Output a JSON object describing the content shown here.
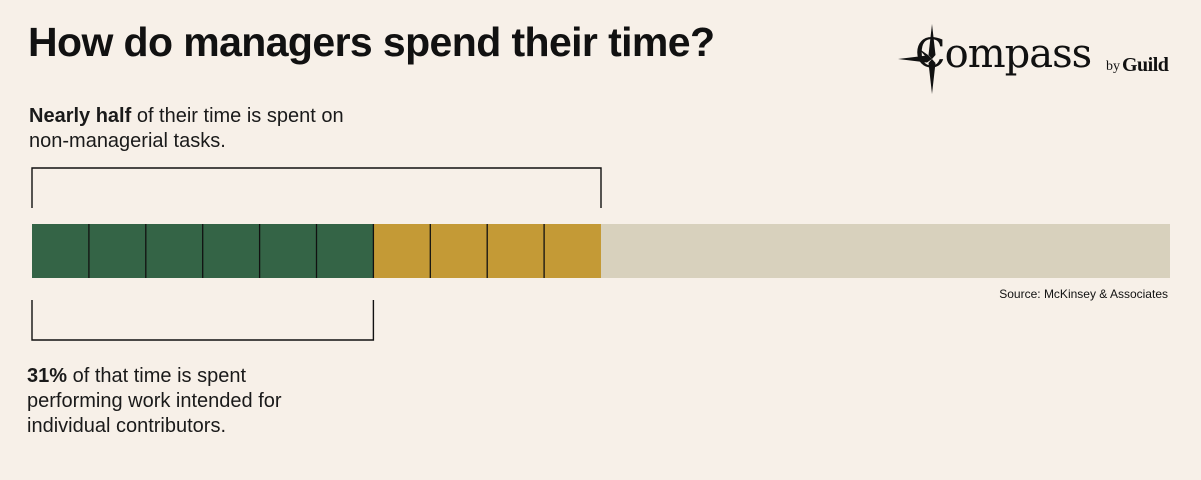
{
  "title": "How do managers spend their time?",
  "logo": {
    "word": "Compass",
    "by": "by",
    "brand": "Guild"
  },
  "annotation_top": {
    "bold": "Nearly half",
    "text": " of their time is spent on non-managerial tasks."
  },
  "annotation_bottom": {
    "bold": "31%",
    "text": " of that time is spent performing work intended for individual contributors."
  },
  "source": "Source: McKinsey & Associates",
  "colors": {
    "background": "#f7f0e8",
    "managerial_segment": "#346446",
    "secondary_segment": "#c49a36",
    "remainder": "#d8d1bd",
    "bracket": "#111111"
  },
  "chart_data": {
    "type": "bar",
    "orientation": "horizontal-stacked",
    "total_units": 20,
    "segments": [
      {
        "units": 6,
        "color": "#346446"
      },
      {
        "units": 4,
        "color": "#c49a36"
      },
      {
        "units": 10,
        "color": "#d8d1bd"
      }
    ],
    "unit_dividers_on_segments": [
      0,
      1
    ],
    "brackets": [
      {
        "position": "above",
        "from_unit": 0,
        "to_unit": 10
      },
      {
        "position": "below",
        "from_unit": 0,
        "to_unit": 6
      }
    ]
  }
}
